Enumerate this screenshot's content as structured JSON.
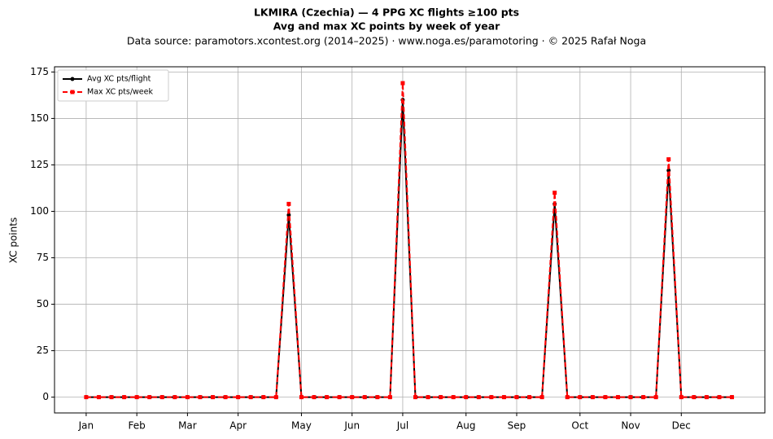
{
  "chart_data": {
    "type": "line",
    "title": "LKMIRA (Czechia)  —  4 PPG XC flights ≥100 pts",
    "subtitle": "Avg and max XC points by week of year",
    "source": "Data source: paramotors.xcontest.org (2014–2025)  ·  www.noga.es/paramotoring  ·  © 2025 Rafał Noga",
    "y_label": "XC points",
    "x": [
      1,
      2,
      3,
      4,
      5,
      6,
      7,
      8,
      9,
      10,
      11,
      12,
      13,
      14,
      15,
      16,
      17,
      18,
      19,
      20,
      21,
      22,
      23,
      24,
      25,
      26,
      27,
      28,
      29,
      30,
      31,
      32,
      33,
      34,
      35,
      36,
      37,
      38,
      39,
      40,
      41,
      42,
      43,
      44,
      45,
      46,
      47,
      48,
      49,
      50,
      51,
      52
    ],
    "series": [
      {
        "name": "Avg XC pts/flight",
        "color": "#000000",
        "values": [
          0,
          0,
          0,
          0,
          0,
          0,
          0,
          0,
          0,
          0,
          0,
          0,
          0,
          0,
          0,
          0,
          98,
          0,
          0,
          0,
          0,
          0,
          0,
          0,
          0,
          160,
          0,
          0,
          0,
          0,
          0,
          0,
          0,
          0,
          0,
          0,
          0,
          104,
          0,
          0,
          0,
          0,
          0,
          0,
          0,
          0,
          122,
          0,
          0,
          0,
          0,
          0
        ]
      },
      {
        "name": "Max XC pts/week",
        "color": "#ff0000",
        "values": [
          0,
          0,
          0,
          0,
          0,
          0,
          0,
          0,
          0,
          0,
          0,
          0,
          0,
          0,
          0,
          0,
          104,
          0,
          0,
          0,
          0,
          0,
          0,
          0,
          0,
          169,
          0,
          0,
          0,
          0,
          0,
          0,
          0,
          0,
          0,
          0,
          0,
          110,
          0,
          0,
          0,
          0,
          0,
          0,
          0,
          0,
          128,
          0,
          0,
          0,
          0,
          0
        ]
      }
    ],
    "xlim": [
      -1.5,
      54.6
    ],
    "xticks": [
      {
        "value": 1,
        "label": "Jan"
      },
      {
        "value": 5,
        "label": "Feb"
      },
      {
        "value": 9,
        "label": "Mar"
      },
      {
        "value": 13,
        "label": "Apr"
      },
      {
        "value": 18,
        "label": "May"
      },
      {
        "value": 22,
        "label": "Jun"
      },
      {
        "value": 26,
        "label": "Jul"
      },
      {
        "value": 31,
        "label": "Aug"
      },
      {
        "value": 35,
        "label": "Sep"
      },
      {
        "value": 40,
        "label": "Oct"
      },
      {
        "value": 44,
        "label": "Nov"
      },
      {
        "value": 48,
        "label": "Dec"
      }
    ],
    "ylim": [
      -8.5,
      177.8
    ],
    "yticks": [
      0,
      25,
      50,
      75,
      100,
      125,
      150,
      175
    ],
    "grid": true,
    "legend": "upper-left"
  }
}
